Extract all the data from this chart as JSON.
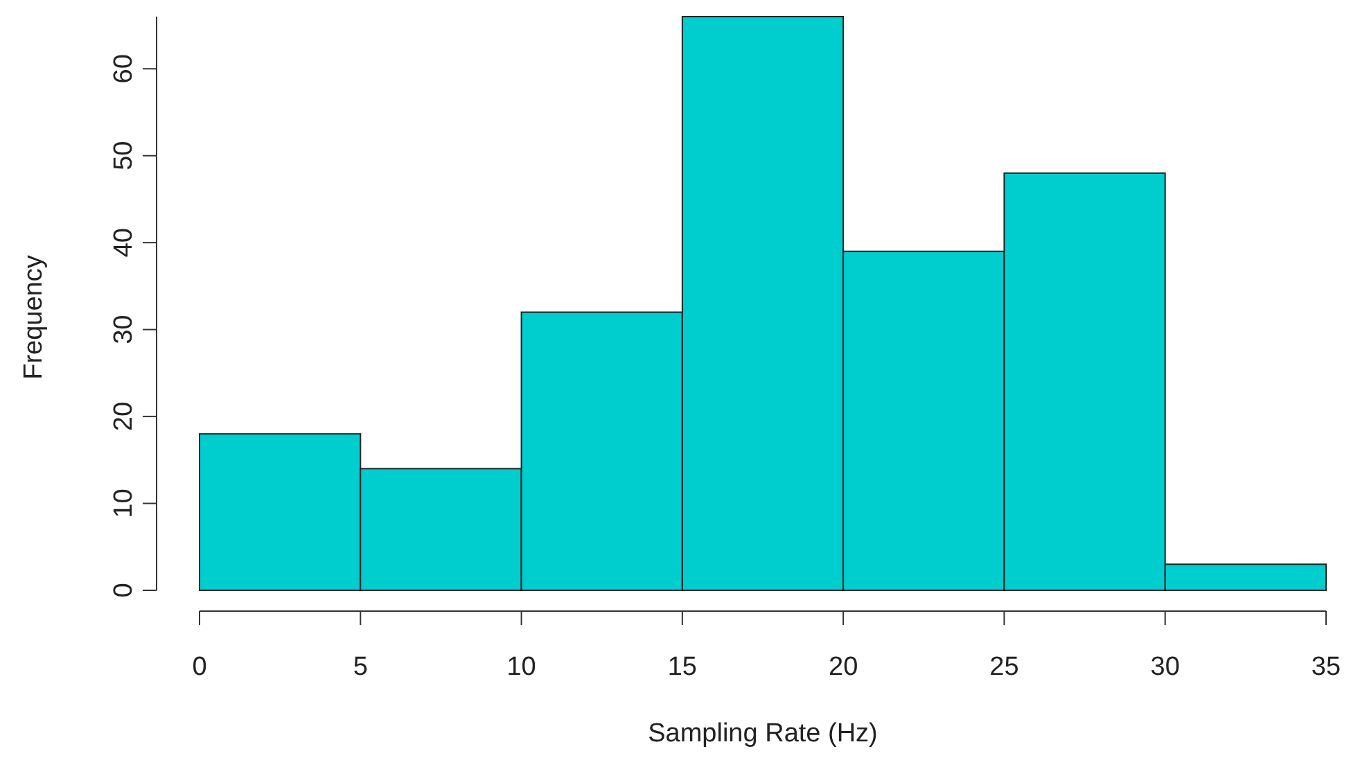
{
  "chart_data": {
    "type": "histogram",
    "xlabel": "Sampling Rate (Hz)",
    "ylabel": "Frequency",
    "bins": [
      0,
      5,
      10,
      15,
      20,
      25,
      30,
      35
    ],
    "values": [
      18,
      14,
      32,
      66,
      39,
      48,
      3
    ],
    "color": "#00cdcd",
    "xlim": [
      0,
      35
    ],
    "xticks": [
      0,
      5,
      10,
      15,
      20,
      25,
      30,
      35
    ],
    "ylim": [
      0,
      66
    ],
    "yticks": [
      0,
      10,
      20,
      30,
      40,
      50,
      60
    ],
    "grid": false
  }
}
